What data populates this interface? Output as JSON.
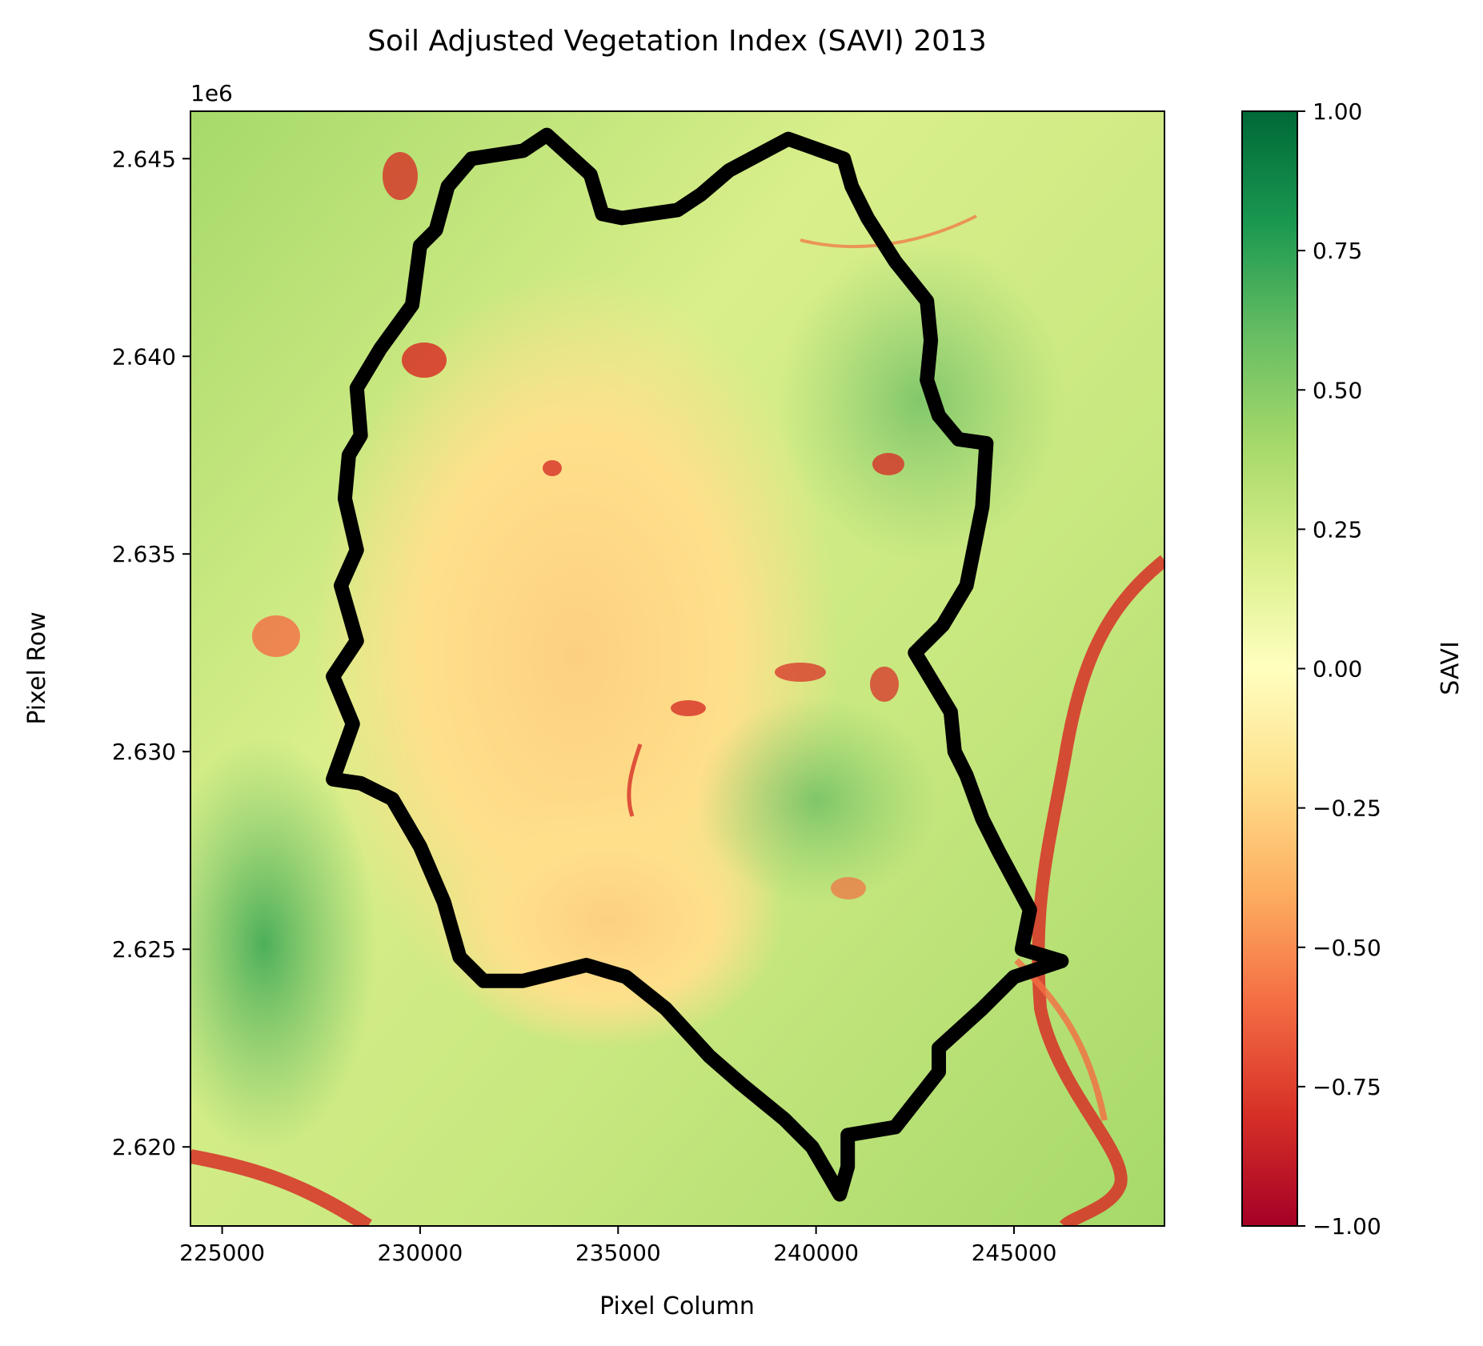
{
  "chart_data": {
    "type": "heatmap",
    "title": "Soil Adjusted Vegetation Index (SAVI) 2013",
    "xlabel": "Pixel Column",
    "ylabel": "Pixel Row",
    "y_offset_label": "1e6",
    "xlim": [
      224200,
      248800
    ],
    "ylim": [
      2618000,
      2646200
    ],
    "x_ticks": [
      225000,
      230000,
      235000,
      240000,
      245000
    ],
    "x_tick_labels": [
      "225000",
      "230000",
      "235000",
      "240000",
      "245000"
    ],
    "y_ticks": [
      2.62,
      2.625,
      2.63,
      2.635,
      2.64,
      2.645
    ],
    "y_tick_labels": [
      "2.620",
      "2.625",
      "2.630",
      "2.635",
      "2.640",
      "2.645"
    ],
    "colorbar": {
      "label": "SAVI",
      "colormap": "RdYlGn",
      "range": [
        -1.0,
        1.0
      ],
      "ticks": [
        1.0,
        0.75,
        0.5,
        0.25,
        0.0,
        -0.25,
        -0.5,
        -0.75,
        -1.0
      ],
      "tick_labels": [
        "1.00",
        "0.75",
        "0.50",
        "0.25",
        "0.00",
        "−0.25",
        "−0.50",
        "−0.75",
        "−1.00"
      ],
      "stops": [
        "#a50026",
        "#d73027",
        "#f46d43",
        "#fdae61",
        "#fee08b",
        "#ffffbf",
        "#d9ef8b",
        "#a6d96a",
        "#66bd63",
        "#1a9850",
        "#006837"
      ]
    },
    "boundary": {
      "color": "#000000",
      "points": [
        [
          227800,
          2629300
        ],
        [
          228500,
          2629200
        ],
        [
          229300,
          2628800
        ],
        [
          230000,
          2627600
        ],
        [
          230600,
          2626200
        ],
        [
          231000,
          2624800
        ],
        [
          231600,
          2624200
        ],
        [
          232600,
          2624200
        ],
        [
          234200,
          2624600
        ],
        [
          235200,
          2624300
        ],
        [
          236200,
          2623500
        ],
        [
          237300,
          2622300
        ],
        [
          238100,
          2621600
        ],
        [
          239200,
          2620700
        ],
        [
          239900,
          2620000
        ],
        [
          240600,
          2618800
        ],
        [
          240800,
          2619500
        ],
        [
          240800,
          2620300
        ],
        [
          242000,
          2620500
        ],
        [
          243100,
          2621900
        ],
        [
          243100,
          2622500
        ],
        [
          244200,
          2623500
        ],
        [
          245000,
          2624300
        ],
        [
          246200,
          2624700
        ],
        [
          245200,
          2625000
        ],
        [
          245400,
          2626000
        ],
        [
          244600,
          2627500
        ],
        [
          244200,
          2628300
        ],
        [
          243800,
          2629400
        ],
        [
          243500,
          2630000
        ],
        [
          243400,
          2631000
        ],
        [
          242500,
          2632500
        ],
        [
          243200,
          2633200
        ],
        [
          243800,
          2634200
        ],
        [
          244200,
          2636200
        ],
        [
          244300,
          2637800
        ],
        [
          243600,
          2637900
        ],
        [
          243100,
          2638500
        ],
        [
          242800,
          2639400
        ],
        [
          242900,
          2640400
        ],
        [
          242800,
          2641400
        ],
        [
          242000,
          2642400
        ],
        [
          241300,
          2643500
        ],
        [
          240900,
          2644300
        ],
        [
          240700,
          2645000
        ],
        [
          239300,
          2645500
        ],
        [
          237800,
          2644700
        ],
        [
          237100,
          2644100
        ],
        [
          236500,
          2643700
        ],
        [
          235100,
          2643500
        ],
        [
          234600,
          2643600
        ],
        [
          234300,
          2644600
        ],
        [
          233200,
          2645600
        ],
        [
          232600,
          2645200
        ],
        [
          231300,
          2645000
        ],
        [
          230700,
          2644300
        ],
        [
          230400,
          2643200
        ],
        [
          230000,
          2642800
        ],
        [
          229800,
          2641300
        ],
        [
          229000,
          2640200
        ],
        [
          228400,
          2639200
        ],
        [
          228500,
          2638000
        ],
        [
          228200,
          2637500
        ],
        [
          228100,
          2636400
        ],
        [
          228400,
          2635100
        ],
        [
          228000,
          2634200
        ],
        [
          228400,
          2632800
        ],
        [
          227800,
          2631900
        ],
        [
          228300,
          2630700
        ],
        [
          227800,
          2629300
        ]
      ]
    }
  }
}
